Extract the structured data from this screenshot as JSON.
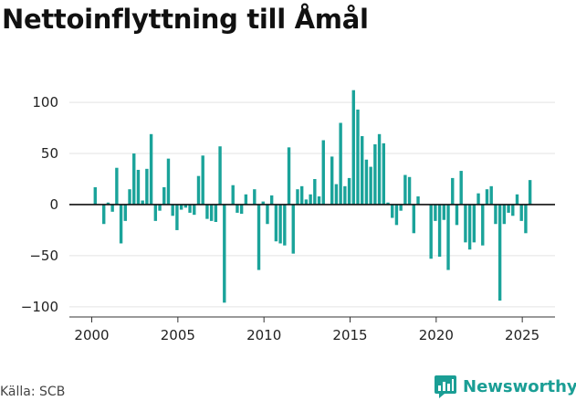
{
  "title": "Nettoinflyttning till Åmål",
  "source": "Källa: SCB",
  "brand": {
    "name": "Newsworthy",
    "icon": "newsworthy-logo-icon",
    "color": "#1a9e95"
  },
  "chart_data": {
    "type": "bar",
    "title": "Nettoinflyttning till Åmål",
    "xlabel": "",
    "ylabel": "",
    "bar_color": "#1aa39a",
    "xlim": [
      1998.7,
      2026.9
    ],
    "ylim": [
      -110,
      118
    ],
    "yticks": [
      100,
      50,
      0,
      -50,
      -100
    ],
    "ytick_labels": [
      "100",
      "50",
      "0",
      "−50",
      "−100"
    ],
    "xticks": [
      2000,
      2005,
      2010,
      2015,
      2020,
      2025
    ],
    "xtick_labels": [
      "2000",
      "2005",
      "2010",
      "2015",
      "2020",
      "2025"
    ],
    "grid": "horizontal",
    "legend": "none",
    "bar_width_years": 0.18,
    "x": [
      2000.2,
      2000.45,
      2000.7,
      2000.95,
      2001.2,
      2001.45,
      2001.7,
      2001.95,
      2002.2,
      2002.45,
      2002.7,
      2002.95,
      2003.2,
      2003.45,
      2003.7,
      2003.95,
      2004.2,
      2004.45,
      2004.7,
      2004.95,
      2005.2,
      2005.45,
      2005.7,
      2005.95,
      2006.2,
      2006.45,
      2006.7,
      2006.95,
      2007.2,
      2007.45,
      2007.7,
      2007.95,
      2008.2,
      2008.45,
      2008.7,
      2008.95,
      2009.2,
      2009.45,
      2009.7,
      2009.95,
      2010.2,
      2010.45,
      2010.7,
      2010.95,
      2011.2,
      2011.45,
      2011.7,
      2011.95,
      2012.2,
      2012.45,
      2012.7,
      2012.95,
      2013.2,
      2013.45,
      2013.7,
      2013.95,
      2014.2,
      2014.45,
      2014.7,
      2014.95,
      2015.2,
      2015.45,
      2015.7,
      2015.95,
      2016.2,
      2016.45,
      2016.7,
      2016.95,
      2017.2,
      2017.45,
      2017.7,
      2017.95,
      2018.2,
      2018.45,
      2018.7,
      2018.95,
      2019.2,
      2019.45,
      2019.7,
      2019.95,
      2020.2,
      2020.45,
      2020.7,
      2020.95,
      2021.2,
      2021.45,
      2021.7,
      2021.95,
      2022.2,
      2022.45,
      2022.7,
      2022.95,
      2023.2,
      2023.45,
      2023.7,
      2023.95,
      2024.2,
      2024.45,
      2024.7,
      2024.95,
      2025.2,
      2025.45
    ],
    "values": [
      17,
      0,
      -19,
      2,
      -7,
      36,
      -38,
      -16,
      15,
      50,
      34,
      4,
      35,
      69,
      -16,
      -6,
      17,
      45,
      -11,
      -25,
      -5,
      -3,
      -8,
      -10,
      28,
      48,
      -14,
      -16,
      -17,
      57,
      -96,
      0,
      19,
      -8,
      -9,
      10,
      0,
      15,
      -64,
      3,
      -19,
      9,
      -36,
      -38,
      -40,
      56,
      -48,
      15,
      18,
      5,
      10,
      25,
      8,
      63,
      0,
      47,
      20,
      80,
      18,
      26,
      112,
      93,
      67,
      44,
      37,
      59,
      69,
      60,
      2,
      -13,
      -20,
      -6,
      29,
      27,
      -28,
      8,
      0,
      0,
      -53,
      -16,
      -51,
      -15,
      -64,
      26,
      -20,
      33,
      -37,
      -44,
      -37,
      11,
      -40,
      15,
      18,
      -19,
      -94,
      -19,
      -8,
      -11,
      10,
      -16,
      -28,
      24
    ]
  }
}
